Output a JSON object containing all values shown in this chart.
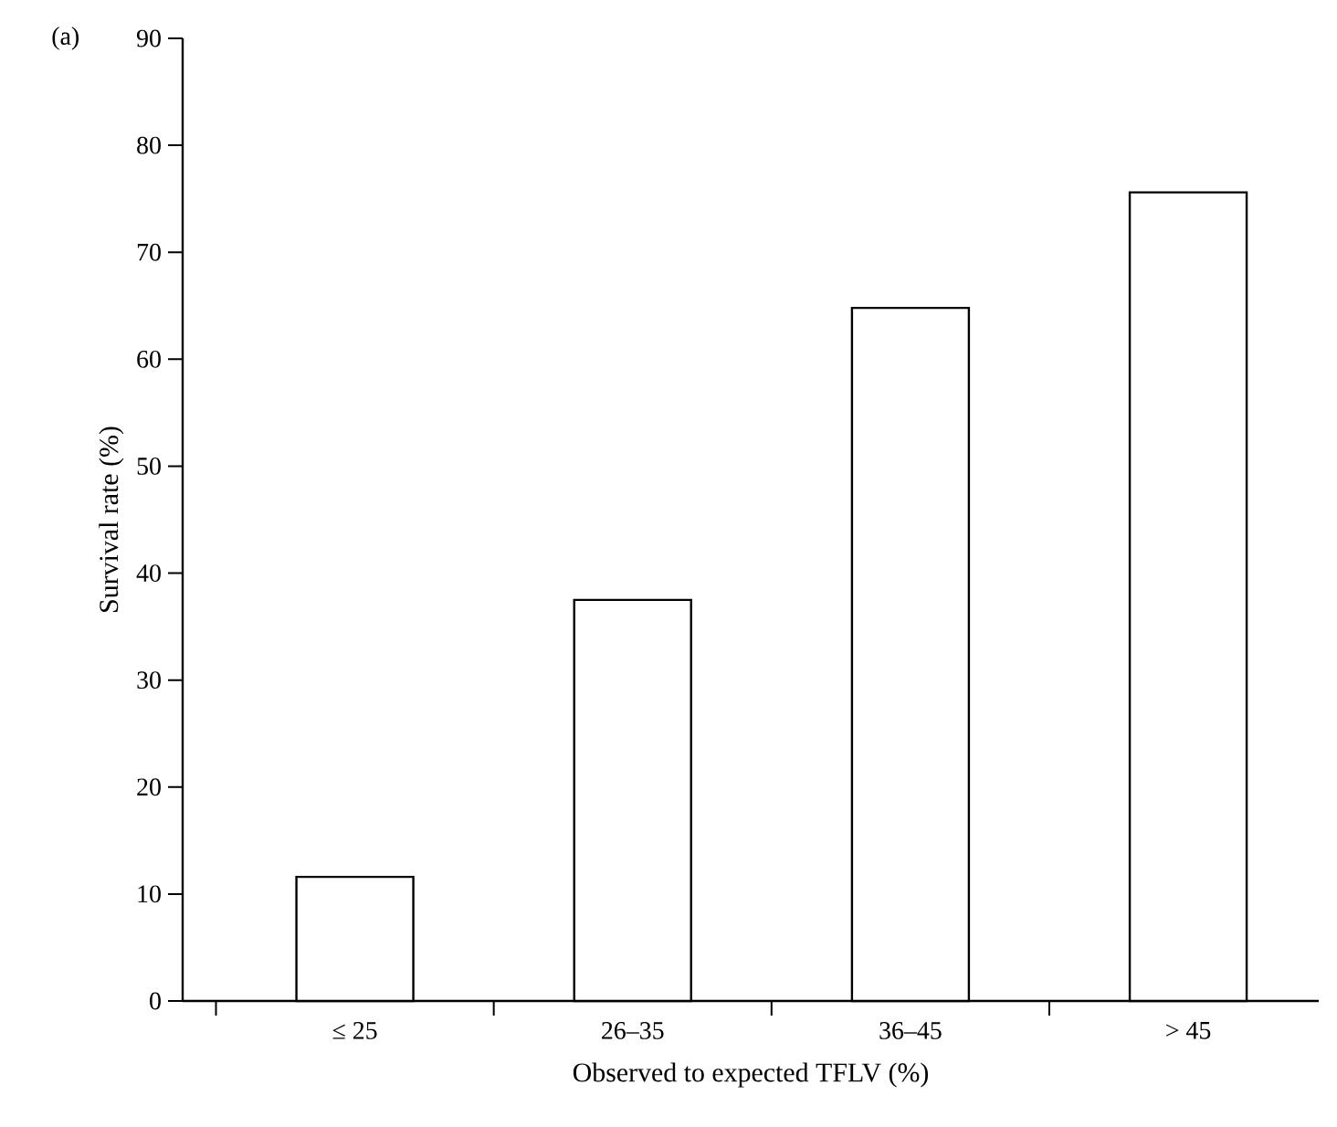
{
  "chart_data": {
    "type": "bar",
    "xlabel": "Observed to expected TFLV (%)",
    "ylabel": "Survival rate (%)",
    "annotations": [
      "(a)"
    ],
    "categories": [
      "≤ 25",
      "26–35",
      "36–45",
      "> 45"
    ],
    "values": [
      11.6,
      37.5,
      64.8,
      75.6
    ],
    "color": "#ffffff",
    "ylim": [
      0,
      90
    ],
    "yticks": [
      0,
      10,
      20,
      30,
      40,
      50,
      60,
      70,
      80,
      90
    ],
    "grid": false
  }
}
